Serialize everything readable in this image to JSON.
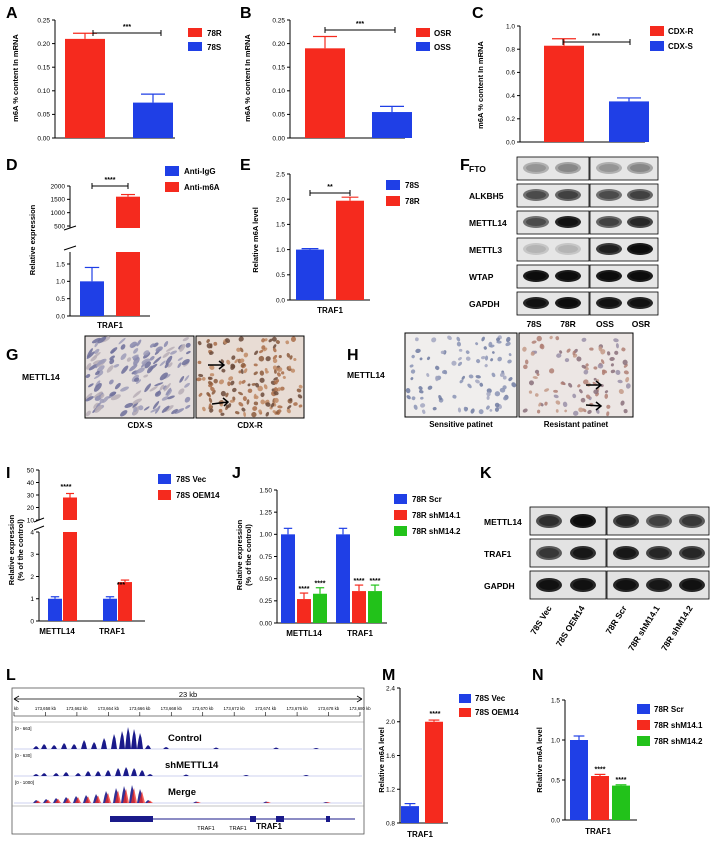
{
  "colors": {
    "red": "#f52a1e",
    "blue": "#1f3fe6",
    "green": "#22c21a",
    "dark_blue": "#1a1a8a",
    "ihc_bg": "#dcd3cf"
  },
  "panels": {
    "A": {
      "label": "A",
      "ylabel": "m6A % content In mRNA",
      "sig": "***",
      "legend": [
        "78R",
        "78S"
      ],
      "yticks": [
        "0.00",
        "0.05",
        "0.10",
        "0.15",
        "0.20",
        "0.25"
      ]
    },
    "B": {
      "label": "B",
      "ylabel": "m6A % content In mRNA",
      "sig": "***",
      "legend": [
        "OSR",
        "OSS"
      ],
      "yticks": [
        "0.00",
        "0.05",
        "0.10",
        "0.15",
        "0.20",
        "0.25"
      ]
    },
    "C": {
      "label": "C",
      "ylabel": "m6A % content In mRNA",
      "sig": "***",
      "legend": [
        "CDX-R",
        "CDX-S"
      ],
      "yticks": [
        "0.0",
        "0.2",
        "0.4",
        "0.6",
        "0.8",
        "1.0"
      ]
    },
    "D": {
      "label": "D",
      "ylabel": "Relative expression",
      "sig": "****",
      "legend": [
        "Anti-IgG",
        "Anti-m6A"
      ],
      "xlabel": "TRAF1",
      "yticks_top": [
        "500",
        "1000",
        "1500",
        "2000"
      ],
      "yticks_bottom": [
        "0.0",
        "0.5",
        "1.0",
        "1.5"
      ]
    },
    "E": {
      "label": "E",
      "ylabel": "Relative m6A level",
      "sig": "**",
      "legend": [
        "78S",
        "78R"
      ],
      "xlabel": "TRAF1",
      "yticks": [
        "0.0",
        "0.5",
        "1.0",
        "1.5",
        "2.0",
        "2.5"
      ]
    },
    "F": {
      "label": "F",
      "rows": [
        "FTO",
        "ALKBH5",
        "METTL14",
        "METTL3",
        "WTAP",
        "GAPDH"
      ],
      "lanes": [
        "78S",
        "78R",
        "OSS",
        "OSR"
      ]
    },
    "G": {
      "label": "G",
      "row_label": "METTL14",
      "images": [
        "CDX-S",
        "CDX-R"
      ]
    },
    "H": {
      "label": "H",
      "row_label": "METTL14",
      "images": [
        "Sensitive patinet",
        "Resistant patinet"
      ]
    },
    "I": {
      "label": "I",
      "ylabel": "Relative expression",
      "ylabel2": "(% of the control)",
      "legend": [
        "78S Vec",
        "78S OEM14"
      ],
      "xticks": [
        "METTL14",
        "TRAF1"
      ],
      "sig": [
        "****",
        "***"
      ],
      "yticks_top": [
        "10",
        "20",
        "30",
        "40",
        "50"
      ],
      "yticks_bottom": [
        "0",
        "1",
        "2",
        "3",
        "4"
      ]
    },
    "J": {
      "label": "J",
      "ylabel": "Relative expression",
      "ylabel2": "(% of the control)",
      "legend": [
        "78R Scr",
        "78R shM14.1",
        "78R shM14.2"
      ],
      "xticks": [
        "METTL14",
        "TRAF1"
      ],
      "sig": "****",
      "yticks": [
        "0.00",
        "0.25",
        "0.50",
        "0.75",
        "1.00",
        "1.25",
        "1.50"
      ]
    },
    "K": {
      "label": "K",
      "rows": [
        "METTL14",
        "TRAF1",
        "GAPDH"
      ],
      "lanes": [
        "78S Vec",
        "78S OEM14",
        "78R Scr",
        "78R shM14.1",
        "78R shM14.2"
      ]
    },
    "L": {
      "label": "L",
      "span": "23 kb",
      "coords": [
        "kb",
        "173,658 kb",
        "173,662 kb",
        "173,664 kb",
        "173,666 kb",
        "173,668 kb",
        "173,670 kb",
        "173,672 kb",
        "173,674 kb",
        "173,676 kb",
        "173,678 kb",
        "173,680 kb"
      ],
      "tracks": [
        {
          "range": "[0 - 663]",
          "name": "Control"
        },
        {
          "range": "[0 - 630]",
          "name": "shMETTL14"
        },
        {
          "range": "[0 - 1000]",
          "name": "Merge"
        }
      ],
      "genes": [
        "TRAF1",
        "TRAF1",
        "TRAF1"
      ]
    },
    "M": {
      "label": "M",
      "ylabel": "Relative m6A level",
      "sig": "****",
      "legend": [
        "78S Vec",
        "78S OEM14"
      ],
      "xlabel": "TRAF1",
      "yticks": [
        "0.8",
        "1.2",
        "1.6",
        "2.0",
        "2.4"
      ]
    },
    "N": {
      "label": "N",
      "ylabel": "Relative m6A level",
      "sig": "****",
      "legend": [
        "78R Scr",
        "78R shM14.1",
        "78R shM14.2"
      ],
      "xlabel": "TRAF1",
      "yticks": [
        "0.0",
        "0.5",
        "1.0",
        "1.5"
      ]
    }
  },
  "chart_data": [
    {
      "panel": "A",
      "type": "bar",
      "categories": [
        "78R",
        "78S"
      ],
      "values": [
        0.21,
        0.075
      ],
      "errors": [
        0.012,
        0.018
      ],
      "ylim": [
        0,
        0.25
      ],
      "ylabel": "m6A % content In mRNA"
    },
    {
      "panel": "B",
      "type": "bar",
      "categories": [
        "OSR",
        "OSS"
      ],
      "values": [
        0.19,
        0.055
      ],
      "errors": [
        0.025,
        0.012
      ],
      "ylim": [
        0,
        0.25
      ],
      "ylabel": "m6A % content In mRNA"
    },
    {
      "panel": "C",
      "type": "bar",
      "categories": [
        "CDX-R",
        "CDX-S"
      ],
      "values": [
        0.83,
        0.35
      ],
      "errors": [
        0.06,
        0.03
      ],
      "ylim": [
        0,
        1.0
      ],
      "ylabel": "m6A % content In mRNA"
    },
    {
      "panel": "D",
      "type": "bar",
      "categories": [
        "Anti-IgG",
        "Anti-m6A"
      ],
      "values": [
        1.0,
        1600
      ],
      "errors": [
        0.4,
        80
      ],
      "ylabel": "Relative expression",
      "broken_axis": [
        1.5,
        500
      ]
    },
    {
      "panel": "E",
      "type": "bar",
      "categories": [
        "78S",
        "78R"
      ],
      "values": [
        1.0,
        1.97
      ],
      "errors": [
        0.02,
        0.07
      ],
      "ylim": [
        0,
        2.5
      ],
      "ylabel": "Relative m6A level"
    },
    {
      "panel": "I",
      "type": "bar",
      "categories": [
        "METTL14",
        "TRAF1"
      ],
      "series": [
        {
          "name": "78S Vec",
          "values": [
            1.0,
            1.0
          ]
        },
        {
          "name": "78S OEM14",
          "values": [
            28,
            1.75
          ]
        }
      ],
      "broken_axis": [
        4,
        10
      ],
      "ylabel": "Relative expression (% of the control)"
    },
    {
      "panel": "J",
      "type": "bar",
      "categories": [
        "METTL14",
        "TRAF1"
      ],
      "series": [
        {
          "name": "78R Scr",
          "values": [
            1.0,
            1.0
          ]
        },
        {
          "name": "78R shM14.1",
          "values": [
            0.27,
            0.36
          ]
        },
        {
          "name": "78R shM14.2",
          "values": [
            0.33,
            0.36
          ]
        }
      ],
      "ylim": [
        0,
        1.5
      ],
      "ylabel": "Relative expression (% of the control)"
    },
    {
      "panel": "M",
      "type": "bar",
      "categories": [
        "78S Vec",
        "78S OEM14"
      ],
      "values": [
        1.0,
        2.0
      ],
      "errors": [
        0.03,
        0.02
      ],
      "ylim": [
        0.8,
        2.4
      ],
      "ylabel": "Relative m6A level"
    },
    {
      "panel": "N",
      "type": "bar",
      "categories": [
        "78R Scr",
        "78R shM14.1",
        "78R shM14.2"
      ],
      "values": [
        1.0,
        0.55,
        0.43
      ],
      "errors": [
        0.05,
        0.02,
        0.01
      ],
      "ylim": [
        0,
        1.5
      ],
      "ylabel": "Relative m6A level"
    }
  ]
}
